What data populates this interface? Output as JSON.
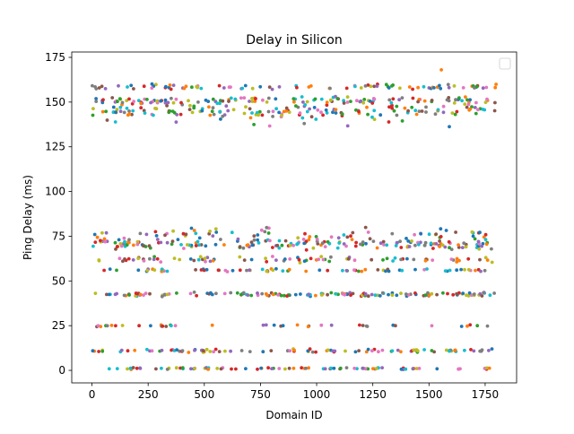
{
  "chart_data": {
    "type": "scatter",
    "title": "Delay in Silicon",
    "xlabel": "Domain ID",
    "ylabel": "Ping Delay (ms)",
    "xlim": [
      -90,
      1890
    ],
    "ylim": [
      -7,
      178
    ],
    "xticks": [
      0,
      250,
      500,
      750,
      1000,
      1250,
      1500,
      1750
    ],
    "yticks": [
      0,
      25,
      50,
      75,
      100,
      125,
      150,
      175
    ],
    "grid": false,
    "legend": "top-right (empty)",
    "domain_count": 1800,
    "bands_ms": [
      1,
      11,
      25,
      42,
      56,
      62,
      70,
      73,
      146,
      151,
      159
    ],
    "extremes": {
      "min_ms": 0,
      "max_ms": 168
    },
    "colors": [
      "#1f77b4",
      "#ff7f0e",
      "#2ca02c",
      "#d62728",
      "#9467bd",
      "#8c564b",
      "#e377c2",
      "#7f7f7f",
      "#bcbd22",
      "#17becf"
    ]
  }
}
